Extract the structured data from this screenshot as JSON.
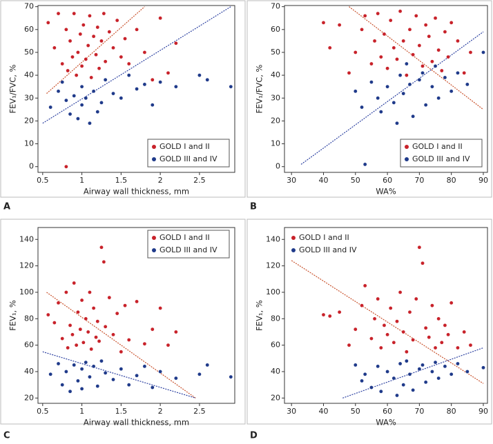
{
  "chart_data": [
    {
      "type": "scatter",
      "panel_label": "A",
      "xlabel": "Airway wall thickness, mm",
      "ylabel": "FEV₁/FVC, %",
      "xlim": [
        0.44,
        2.95
      ],
      "xticks": [
        0.5,
        1.0,
        1.5,
        2.0,
        2.5
      ],
      "ylim": [
        -2.5,
        70.5
      ],
      "yticks": [
        0,
        10,
        20,
        30,
        40,
        50,
        60,
        70
      ],
      "legend": "lower right",
      "series": [
        {
          "name": "GOLD I and II",
          "color": "#c8222a",
          "x": [
            0.57,
            0.65,
            0.7,
            0.75,
            0.8,
            0.82,
            0.85,
            0.88,
            0.9,
            0.93,
            0.95,
            0.98,
            1.0,
            1.02,
            1.05,
            1.08,
            1.1,
            1.12,
            1.15,
            1.18,
            1.2,
            1.22,
            1.25,
            1.28,
            1.3,
            1.35,
            1.4,
            1.45,
            1.5,
            1.55,
            1.6,
            1.7,
            1.8,
            1.9,
            2.0,
            2.1,
            2.2,
            0.8
          ],
          "values": [
            63,
            52,
            67,
            45,
            60,
            42,
            55,
            48,
            67,
            40,
            50,
            58,
            44,
            62,
            47,
            53,
            66,
            39,
            57,
            49,
            61,
            43,
            55,
            67,
            46,
            59,
            52,
            64,
            48,
            56,
            45,
            60,
            50,
            38,
            65,
            41,
            54,
            0
          ]
        },
        {
          "name": "GOLD III and IV",
          "color": "#1f3a8a",
          "x": [
            0.6,
            0.7,
            0.75,
            0.8,
            0.85,
            0.9,
            0.95,
            1.0,
            1.0,
            1.05,
            1.1,
            1.15,
            1.2,
            1.25,
            1.3,
            1.4,
            1.5,
            1.6,
            1.7,
            1.8,
            1.9,
            2.0,
            2.2,
            2.5,
            2.6,
            2.9
          ],
          "values": [
            26,
            33,
            37,
            29,
            23,
            31,
            21,
            35,
            27,
            30,
            19,
            33,
            24,
            28,
            38,
            32,
            30,
            40,
            34,
            36,
            27,
            37,
            35,
            40,
            38,
            35
          ]
        }
      ],
      "trend_lines": [
        {
          "color": "#c8502a",
          "x": [
            0.55,
            1.8
          ],
          "y": [
            32,
            70
          ]
        },
        {
          "color": "#2a3fa0",
          "x": [
            0.5,
            2.9
          ],
          "y": [
            19,
            70
          ]
        }
      ]
    },
    {
      "type": "scatter",
      "panel_label": "B",
      "xlabel": "WA%",
      "ylabel": "FEV₁/FVC, %",
      "xlim": [
        27.8,
        91.3
      ],
      "xticks": [
        30,
        40,
        50,
        60,
        70,
        80,
        90
      ],
      "ylim": [
        -2.5,
        70.5
      ],
      "yticks": [
        0,
        10,
        20,
        30,
        40,
        50,
        60,
        70
      ],
      "legend": "lower right",
      "series": [
        {
          "name": "GOLD I and II",
          "color": "#c8222a",
          "x": [
            40,
            42,
            45,
            48,
            50,
            52,
            53,
            55,
            56,
            57,
            58,
            59,
            60,
            61,
            62,
            63,
            64,
            65,
            66,
            67,
            68,
            69,
            70,
            71,
            72,
            73,
            74,
            75,
            76,
            77,
            78,
            79,
            80,
            82,
            84,
            86
          ],
          "values": [
            63,
            52,
            62,
            41,
            50,
            60,
            66,
            45,
            55,
            67,
            48,
            58,
            43,
            64,
            52,
            47,
            68,
            55,
            40,
            60,
            49,
            66,
            53,
            44,
            62,
            57,
            46,
            65,
            51,
            42,
            59,
            48,
            63,
            55,
            41,
            50
          ]
        },
        {
          "name": "GOLD III and IV",
          "color": "#1f3a8a",
          "x": [
            50,
            52,
            53,
            55,
            57,
            58,
            60,
            62,
            63,
            64,
            65,
            66,
            67,
            68,
            70,
            71,
            72,
            74,
            75,
            76,
            78,
            80,
            82,
            85,
            90
          ],
          "values": [
            33,
            26,
            1,
            37,
            30,
            24,
            35,
            28,
            19,
            40,
            32,
            45,
            36,
            22,
            38,
            41,
            27,
            35,
            44,
            30,
            39,
            33,
            41,
            36,
            50
          ]
        }
      ],
      "trend_lines": [
        {
          "color": "#c8502a",
          "x": [
            48,
            90
          ],
          "y": [
            70,
            25
          ]
        },
        {
          "color": "#2a3fa0",
          "x": [
            33,
            90
          ],
          "y": [
            1,
            59
          ]
        }
      ]
    },
    {
      "type": "scatter",
      "panel_label": "C",
      "xlabel": "Airway wall thickness, mm",
      "ylabel": "FEV₁, %",
      "xlim": [
        0.44,
        2.95
      ],
      "xticks": [
        0.5,
        1.0,
        1.5,
        2.0,
        2.5
      ],
      "ylim": [
        16,
        149
      ],
      "yticks": [
        20,
        40,
        60,
        80,
        100,
        120,
        140
      ],
      "legend": "upper right",
      "series": [
        {
          "name": "GOLD I and II",
          "color": "#c8222a",
          "x": [
            0.57,
            0.65,
            0.7,
            0.75,
            0.8,
            0.82,
            0.85,
            0.88,
            0.9,
            0.93,
            0.95,
            0.98,
            1.0,
            1.02,
            1.05,
            1.08,
            1.1,
            1.12,
            1.15,
            1.18,
            1.2,
            1.22,
            1.25,
            1.28,
            1.3,
            1.35,
            1.4,
            1.45,
            1.5,
            1.55,
            1.6,
            1.7,
            1.8,
            1.9,
            2.0,
            2.1,
            2.2
          ],
          "values": [
            83,
            77,
            92,
            65,
            100,
            58,
            75,
            68,
            107,
            60,
            85,
            72,
            94,
            62,
            80,
            70,
            100,
            57,
            88,
            66,
            78,
            63,
            134,
            123,
            74,
            96,
            68,
            84,
            55,
            90,
            64,
            93,
            61,
            72,
            88,
            60,
            70
          ]
        },
        {
          "name": "GOLD III and IV",
          "color": "#1f3a8a",
          "x": [
            0.6,
            0.7,
            0.75,
            0.8,
            0.85,
            0.9,
            0.95,
            1.0,
            1.0,
            1.05,
            1.1,
            1.15,
            1.2,
            1.25,
            1.3,
            1.4,
            1.5,
            1.6,
            1.7,
            1.8,
            1.9,
            2.0,
            2.2,
            2.5,
            2.6,
            2.9
          ],
          "values": [
            38,
            46,
            30,
            40,
            25,
            45,
            33,
            42,
            27,
            47,
            36,
            44,
            29,
            48,
            39,
            34,
            42,
            30,
            37,
            44,
            28,
            40,
            35,
            38,
            45,
            36
          ]
        }
      ],
      "trend_lines": [
        {
          "color": "#c8502a",
          "x": [
            0.55,
            2.45
          ],
          "y": [
            100,
            20
          ]
        },
        {
          "color": "#2a3fa0",
          "x": [
            0.5,
            2.45
          ],
          "y": [
            55,
            20
          ]
        }
      ]
    },
    {
      "type": "scatter",
      "panel_label": "D",
      "xlabel": "WA%",
      "ylabel": "FEV₁, %",
      "xlim": [
        27.8,
        91.3
      ],
      "xticks": [
        30,
        40,
        50,
        60,
        70,
        80,
        90
      ],
      "ylim": [
        16,
        149
      ],
      "yticks": [
        20,
        40,
        60,
        80,
        100,
        120,
        140
      ],
      "legend": "upper left",
      "series": [
        {
          "name": "GOLD I and II",
          "color": "#c8222a",
          "x": [
            40,
            42,
            45,
            48,
            50,
            52,
            53,
            55,
            56,
            57,
            58,
            59,
            60,
            61,
            62,
            63,
            64,
            65,
            66,
            67,
            68,
            69,
            70,
            71,
            72,
            73,
            74,
            75,
            76,
            77,
            78,
            79,
            80,
            82,
            84,
            86
          ],
          "values": [
            83,
            82,
            85,
            60,
            72,
            90,
            105,
            65,
            80,
            95,
            58,
            75,
            68,
            88,
            62,
            78,
            100,
            70,
            55,
            85,
            64,
            95,
            134,
            122,
            73,
            66,
            90,
            58,
            80,
            62,
            75,
            68,
            92,
            58,
            70,
            60
          ]
        },
        {
          "name": "GOLD III and IV",
          "color": "#1f3a8a",
          "x": [
            50,
            52,
            53,
            55,
            57,
            58,
            60,
            62,
            63,
            64,
            65,
            66,
            67,
            68,
            70,
            71,
            72,
            74,
            75,
            76,
            78,
            80,
            82,
            85,
            90
          ],
          "values": [
            45,
            33,
            38,
            28,
            44,
            25,
            40,
            35,
            22,
            46,
            30,
            48,
            38,
            26,
            42,
            45,
            32,
            40,
            47,
            35,
            44,
            38,
            46,
            40,
            43
          ]
        }
      ],
      "trend_lines": [
        {
          "color": "#c8502a",
          "x": [
            30,
            90
          ],
          "y": [
            124,
            31
          ]
        },
        {
          "color": "#2a3fa0",
          "x": [
            46,
            90
          ],
          "y": [
            20,
            58
          ]
        }
      ]
    }
  ]
}
